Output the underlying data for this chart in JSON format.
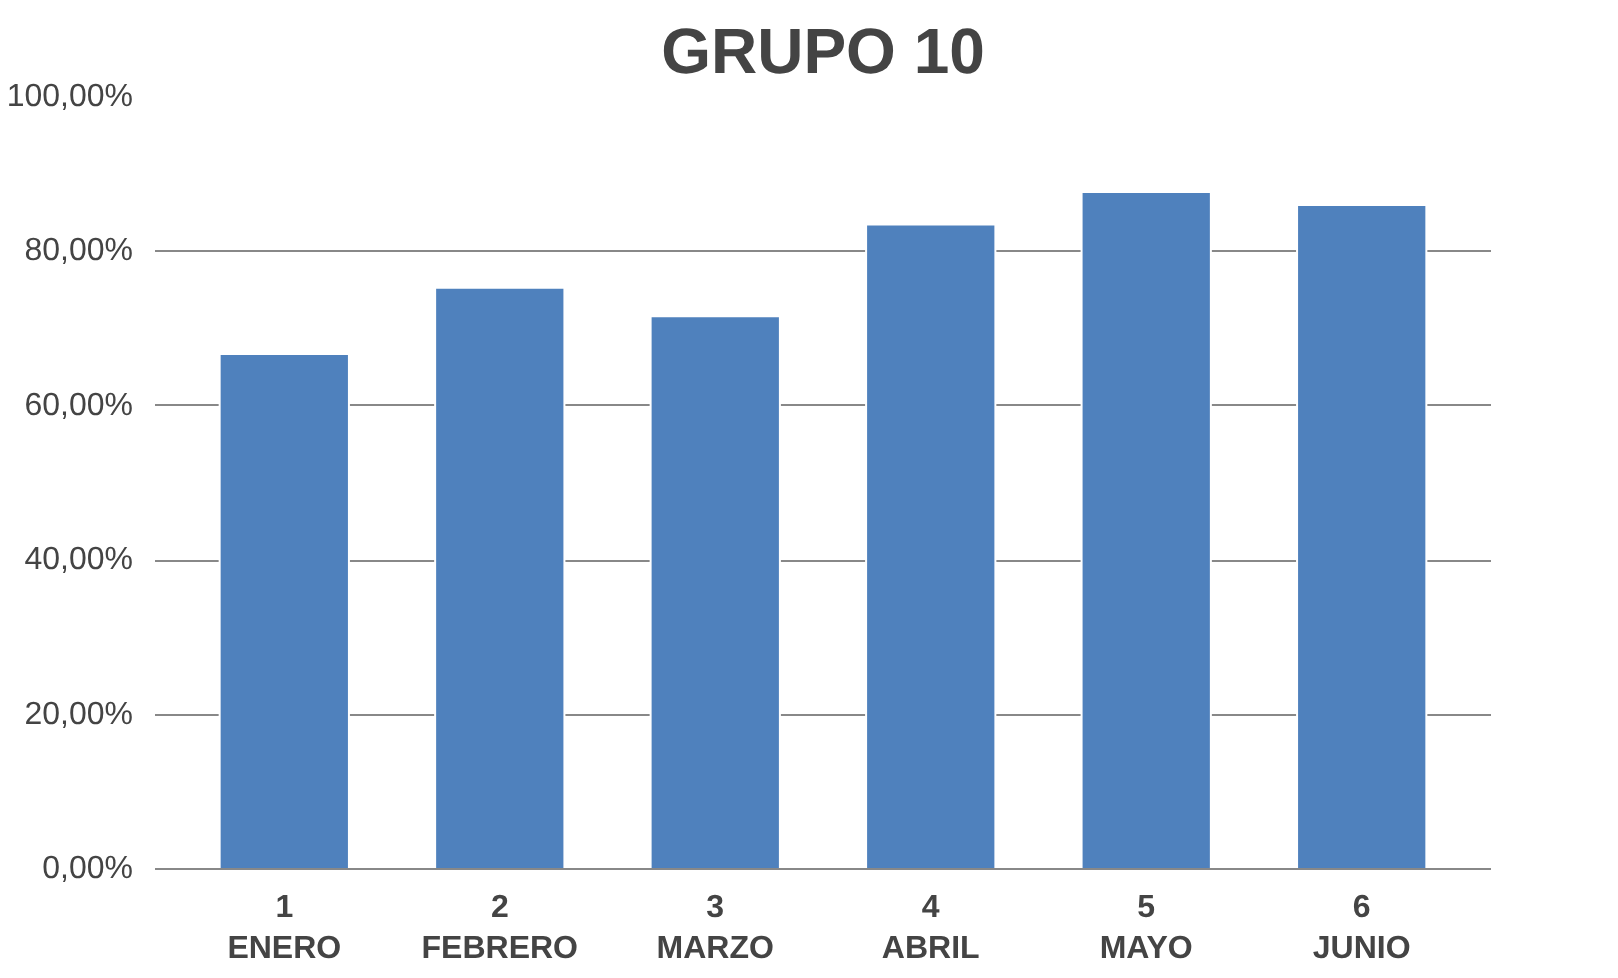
{
  "chart_data": {
    "type": "bar",
    "title": "GRUPO 10",
    "categories": [
      "1\nENERO",
      "2\nFEBRERO",
      "3\nMARZO",
      "4\nABRIL",
      "5\nMAYO",
      "6\nJUNIO"
    ],
    "values": [
      66.7,
      75.3,
      71.6,
      83.5,
      87.7,
      86
    ],
    "color": "#4f81bd",
    "ylim": [
      0,
      100
    ],
    "yticks": [
      {
        "value": 0,
        "label": "0,00%"
      },
      {
        "value": 20,
        "label": "20,00%"
      },
      {
        "value": 40,
        "label": "40,00%"
      },
      {
        "value": 60,
        "label": "60,00%"
      },
      {
        "value": 80,
        "label": "80,00%"
      },
      {
        "value": 100,
        "label": "100,00%"
      }
    ],
    "grid": "y"
  }
}
